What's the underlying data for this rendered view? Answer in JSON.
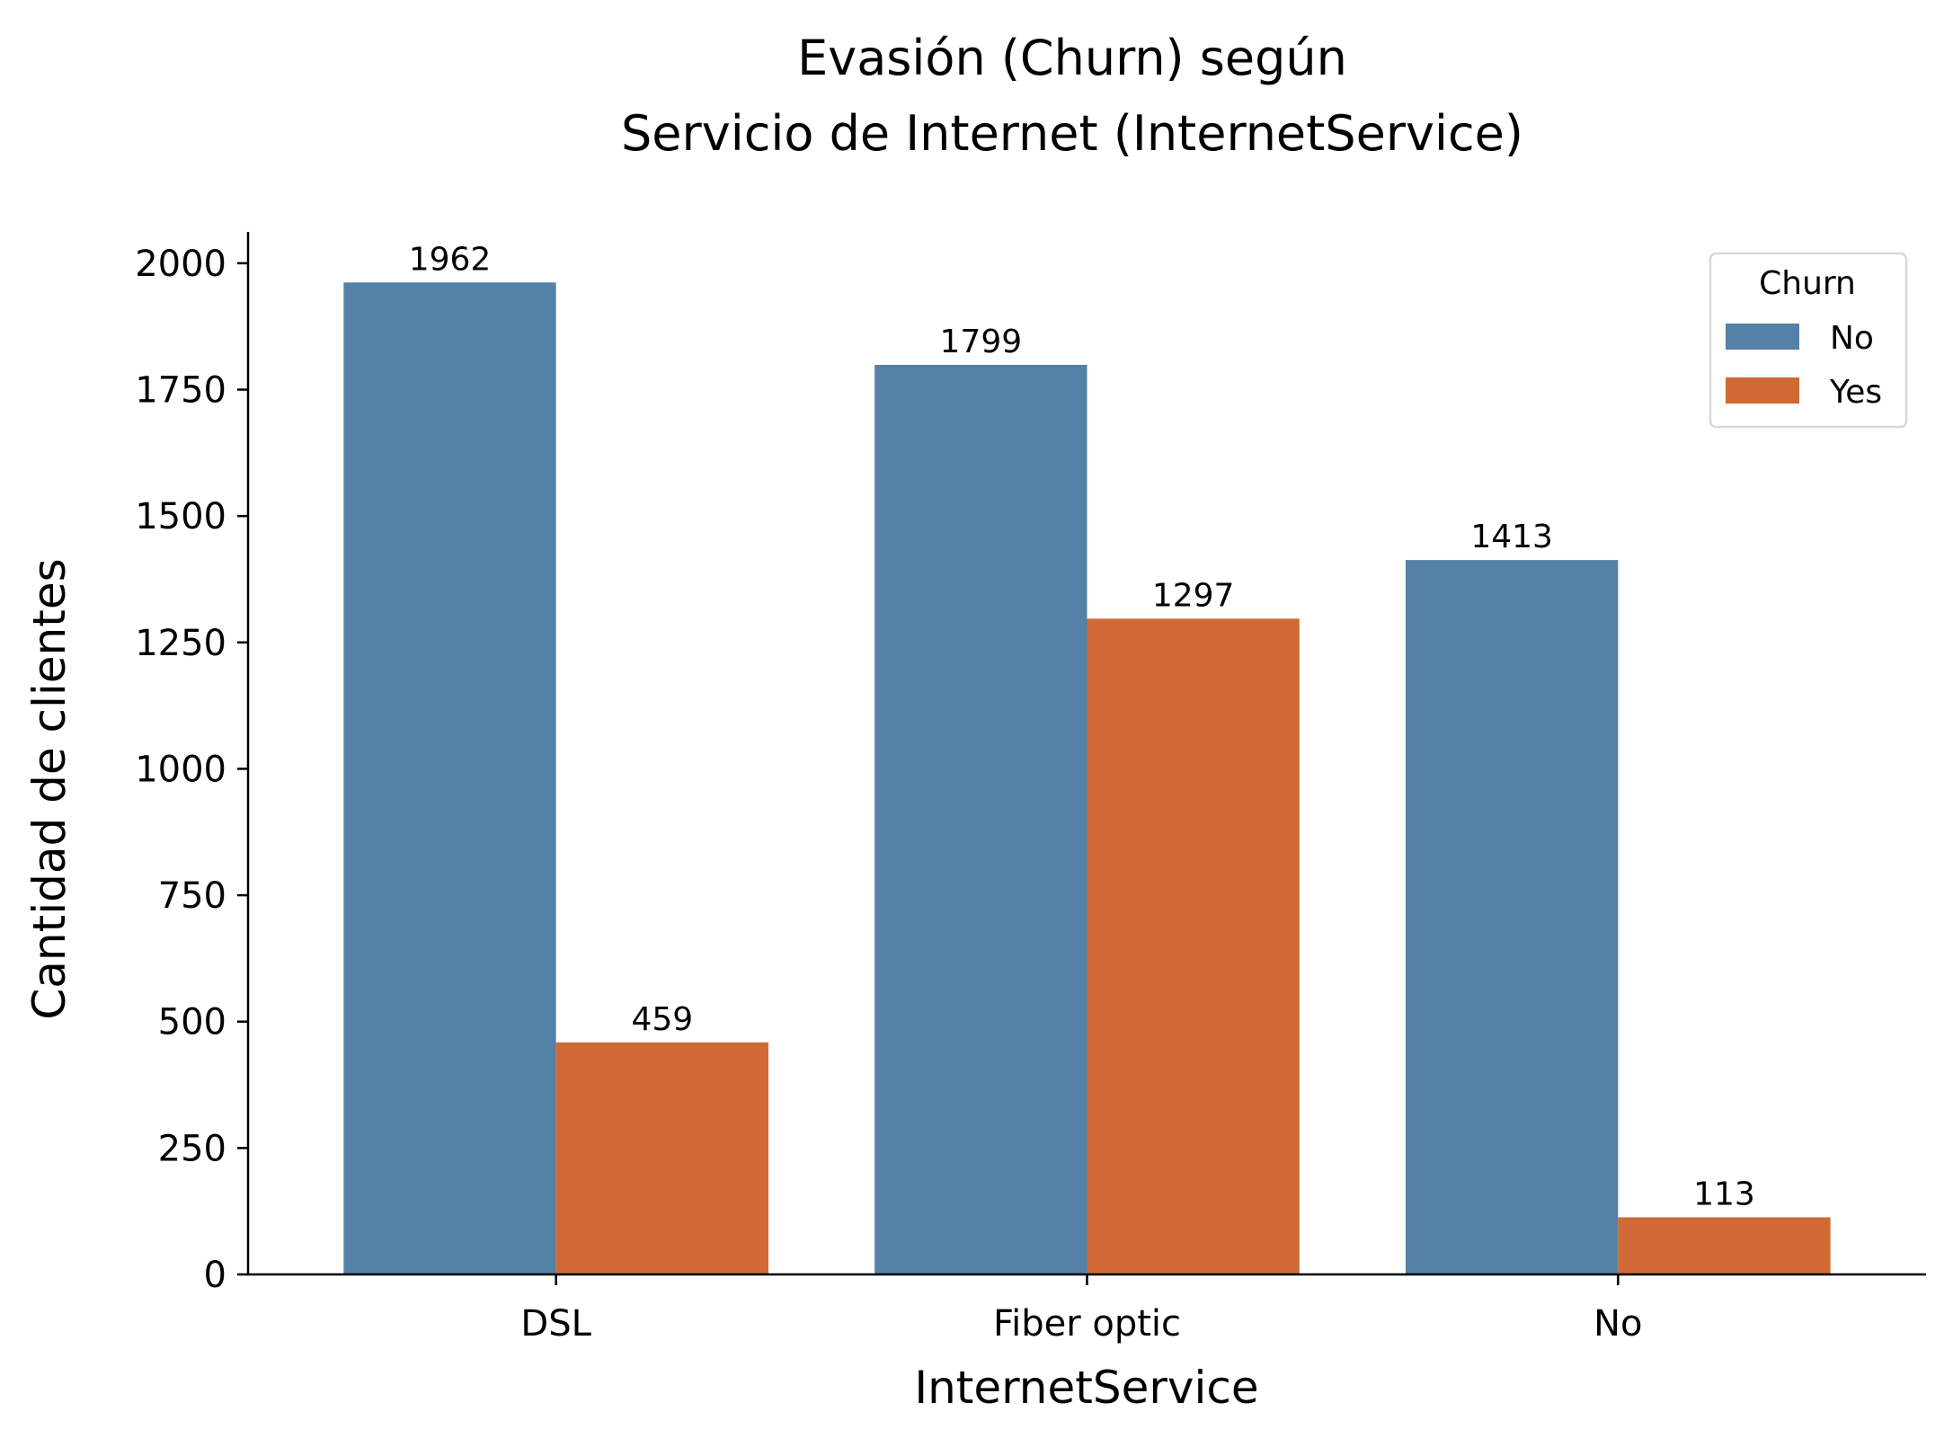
{
  "chart_data": {
    "type": "bar",
    "title_line1": "Evasión (Churn) según",
    "title_line2": "Servicio de Internet (InternetService)",
    "xlabel": "InternetService",
    "ylabel": "Cantidad de clientes",
    "categories": [
      "DSL",
      "Fiber optic",
      "No"
    ],
    "series": [
      {
        "name": "No",
        "color": "#5381a7",
        "values": [
          1962,
          1799,
          1413
        ]
      },
      {
        "name": "Yes",
        "color": "#cf6a37",
        "values": [
          459,
          1297,
          113
        ]
      }
    ],
    "ylim": [
      0,
      2062
    ],
    "yticks": [
      0,
      250,
      500,
      750,
      1000,
      1250,
      1500,
      1750,
      2000
    ],
    "legend": {
      "title": "Churn",
      "position": "top-right"
    },
    "grid": false
  }
}
